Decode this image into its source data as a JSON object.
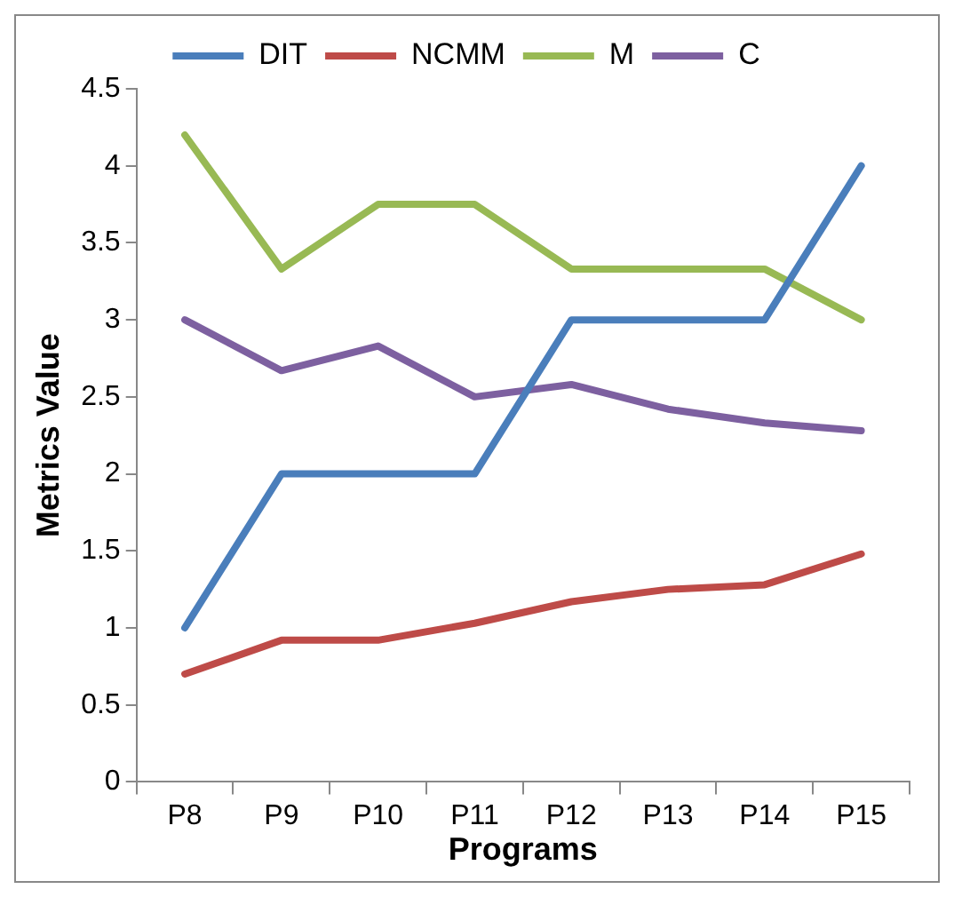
{
  "chart_data": {
    "type": "line",
    "xlabel": "Programs",
    "ylabel": "Metrics Value",
    "categories": [
      "P8",
      "P9",
      "P10",
      "P11",
      "P12",
      "P13",
      "P14",
      "P15"
    ],
    "series": [
      {
        "name": "DIT",
        "color": "#4a7ebb",
        "values": [
          1,
          2,
          2,
          2,
          3,
          3,
          3,
          4
        ]
      },
      {
        "name": "NCMM",
        "color": "#be4b48",
        "values": [
          0.7,
          0.92,
          0.92,
          1.03,
          1.17,
          1.25,
          1.28,
          1.48
        ]
      },
      {
        "name": "M",
        "color": "#98b954",
        "values": [
          4.2,
          3.33,
          3.75,
          3.75,
          3.33,
          3.33,
          3.33,
          3.0
        ]
      },
      {
        "name": "C",
        "color": "#7d60a0",
        "values": [
          3.0,
          2.67,
          2.83,
          2.5,
          2.58,
          2.42,
          2.33,
          2.28
        ]
      }
    ],
    "ylim": [
      0,
      4.5
    ],
    "yticks": [
      0,
      0.5,
      1,
      1.5,
      2,
      2.5,
      3,
      3.5,
      4,
      4.5
    ],
    "grid": false,
    "legend": "top",
    "marker": "none",
    "line_style": "solid"
  }
}
